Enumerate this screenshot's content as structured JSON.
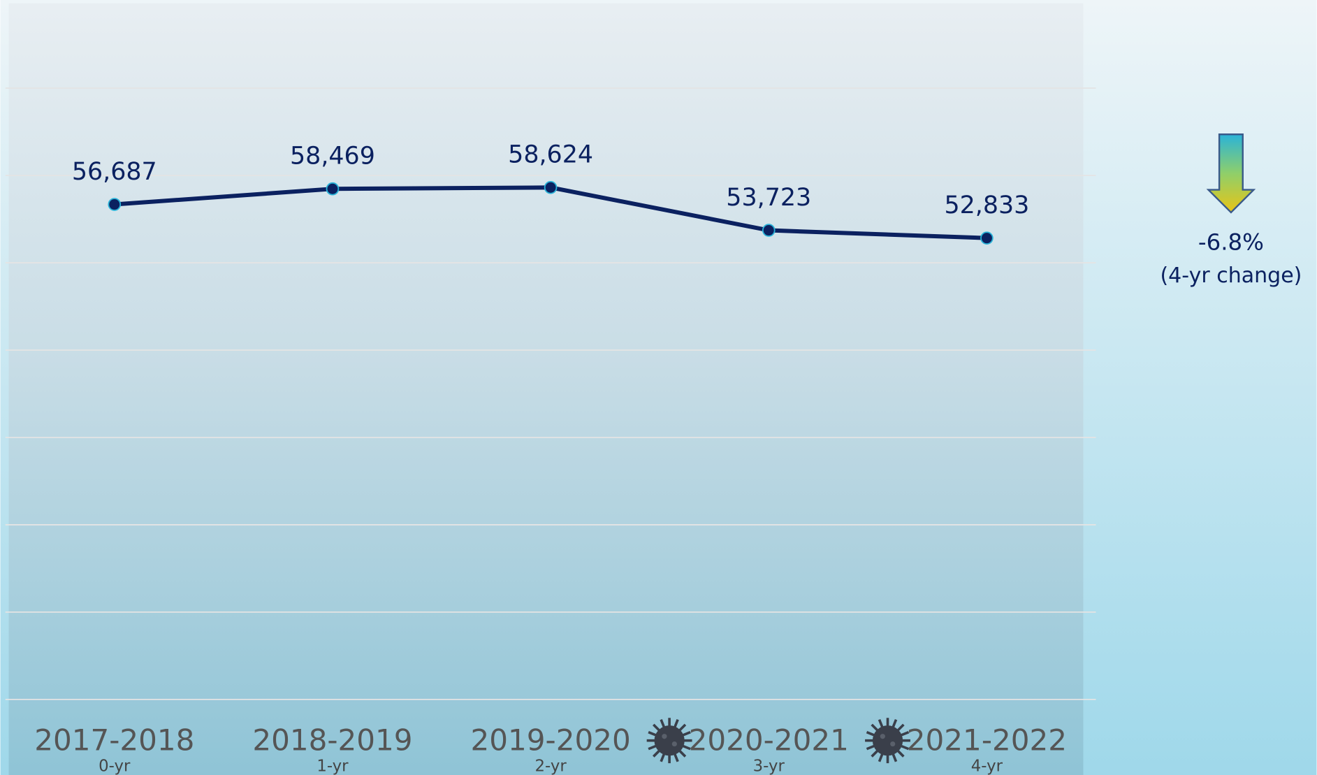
{
  "chart_data": {
    "type": "line",
    "categories": [
      "2017-2018",
      "2018-2019",
      "2019-2020",
      "2020-2021",
      "2021-2022"
    ],
    "x_sublabels": [
      "0-yr",
      "1-yr",
      "2-yr",
      "3-yr",
      "4-yr"
    ],
    "series": [
      {
        "color": "#0b2160",
        "values": [
          56687,
          58469,
          58624,
          53723,
          52833
        ],
        "value_labels": [
          "56,687",
          "58,469",
          "58,624",
          "53,723",
          "52,833"
        ]
      }
    ],
    "ylim": [
      0,
      70000
    ],
    "yticks": [
      0,
      10000,
      20000,
      30000,
      40000,
      50000,
      60000,
      70000
    ],
    "grid": true,
    "annotations": [
      "-6.8%",
      "(4-yr change)"
    ]
  }
}
